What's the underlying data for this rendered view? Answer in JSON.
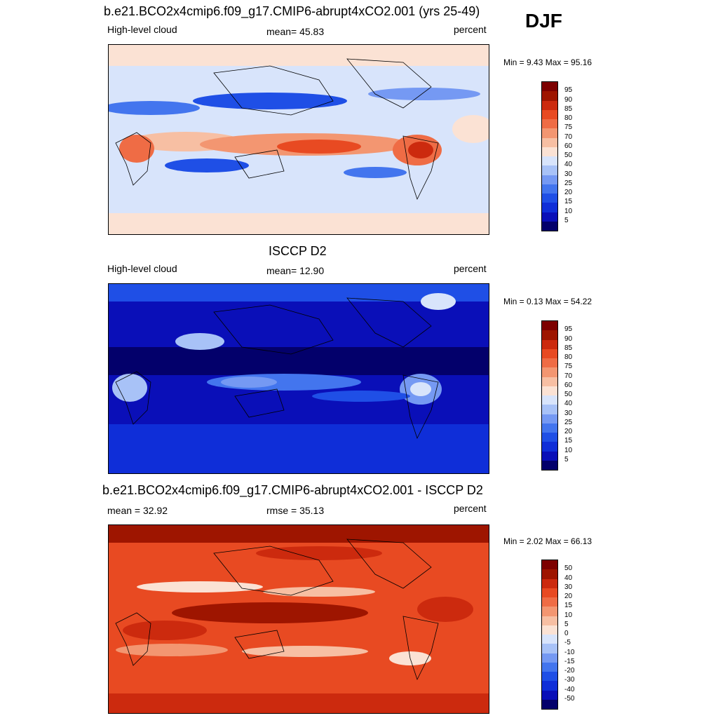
{
  "season": "DJF",
  "colorbar_colors": [
    "#03006b",
    "#0a0fb8",
    "#0f2ed8",
    "#1f4fe6",
    "#4375ee",
    "#7599f3",
    "#a8c2f7",
    "#d8e4fb",
    "#fbe2d4",
    "#f7bfa3",
    "#f39671",
    "#ef6c45",
    "#e84a22",
    "#cc2a0e",
    "#9e1500",
    "#7d0000"
  ],
  "panels": [
    {
      "title": "b.e21.BCO2x4cmip6.f09_g17.CMIP6-abrupt4xCO2.001 (yrs 25-49)",
      "left_label": "High-level cloud",
      "center_label": "mean=  45.83",
      "right_label": "percent",
      "minmax": "Min =   9.43 Max =  95.16",
      "colorbar_labels": [
        "95",
        "90",
        "85",
        "80",
        "75",
        "70",
        "60",
        "50",
        "40",
        "30",
        "25",
        "20",
        "15",
        "10",
        "5"
      ]
    },
    {
      "title": "ISCCP D2",
      "left_label": "High-level cloud",
      "center_label": "mean=  12.90",
      "right_label": "percent",
      "minmax": "Min =   0.13 Max =  54.22",
      "colorbar_labels": [
        "95",
        "90",
        "85",
        "80",
        "75",
        "70",
        "60",
        "50",
        "40",
        "30",
        "25",
        "20",
        "15",
        "10",
        "5"
      ]
    },
    {
      "title": "b.e21.BCO2x4cmip6.f09_g17.CMIP6-abrupt4xCO2.001 - ISCCP D2",
      "left_label": "mean =  32.92",
      "center_label": "rmse =  35.13",
      "right_label": "percent",
      "minmax": "Min =   2.02 Max =  66.13",
      "colorbar_labels": [
        "50",
        "40",
        "30",
        "20",
        "15",
        "10",
        "5",
        "0",
        "-5",
        "-10",
        "-15",
        "-20",
        "-30",
        "-40",
        "-50"
      ]
    }
  ]
}
